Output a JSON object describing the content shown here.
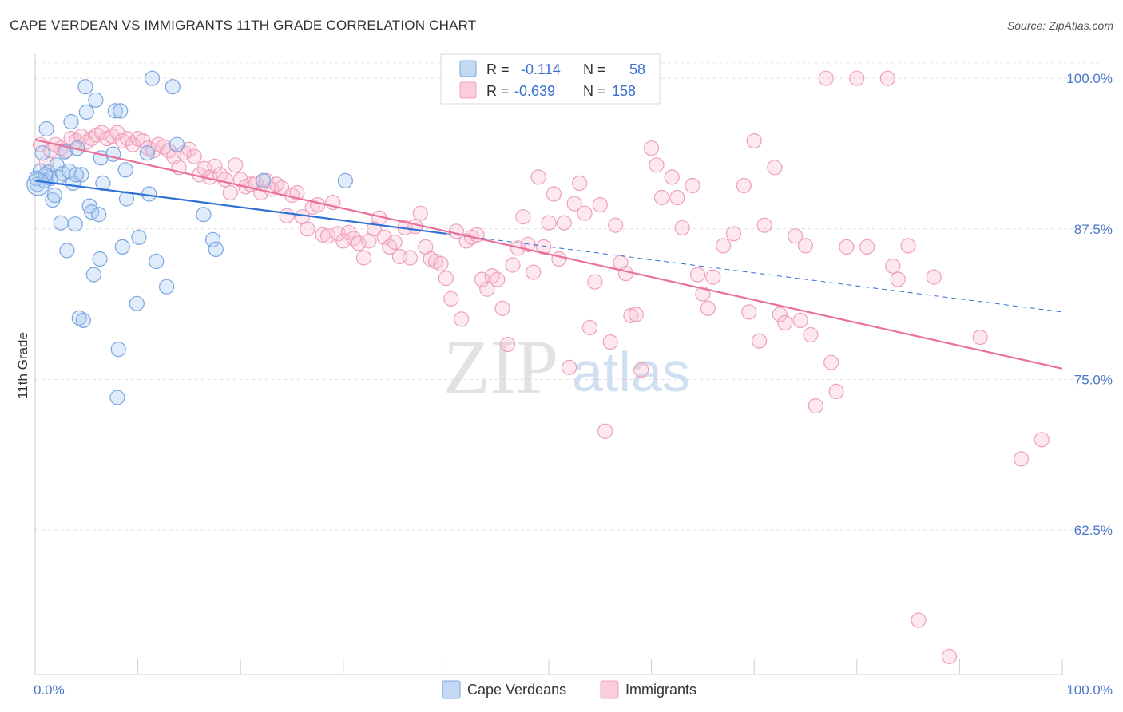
{
  "title": "CAPE VERDEAN VS IMMIGRANTS 11TH GRADE CORRELATION CHART",
  "source": "Source: ZipAtlas.com",
  "watermark": {
    "zip": "ZIP",
    "atlas": "atlas"
  },
  "chart_data": {
    "type": "scatter",
    "ylabel": "11th Grade",
    "xlim": [
      0,
      100
    ],
    "ylim": [
      50.5,
      102
    ],
    "x_tick_labels": {
      "left": "0.0%",
      "right": "100.0%"
    },
    "y_ticks": [
      {
        "value": 100.0,
        "label": "100.0%"
      },
      {
        "value": 87.5,
        "label": "87.5%"
      },
      {
        "value": 75.0,
        "label": "75.0%"
      },
      {
        "value": 62.5,
        "label": "62.5%"
      }
    ],
    "grid": true,
    "legend_position": "top-center",
    "legend": [
      {
        "name": "Cape Verdeans",
        "r_label": "R =",
        "r": "-0.114",
        "n_label": "N =",
        "n": "58",
        "color": "#7aa6e0"
      },
      {
        "name": "Immigrants",
        "r_label": "R =",
        "r": "-0.639",
        "n_label": "N =",
        "n": "158",
        "color": "#f0a0bc"
      }
    ],
    "series": [
      {
        "name": "Cape Verdeans",
        "color": "#7aa6e0",
        "trend": {
          "x0": 0,
          "y0": 91.5,
          "x1": 40,
          "y1": 87.1,
          "dash_to_x": 100,
          "dash_to_y": 80.6
        },
        "points": [
          [
            0.2,
            91.2
          ],
          [
            0.5,
            92.3
          ],
          [
            0.7,
            93.8
          ],
          [
            0.9,
            91.5
          ],
          [
            1.1,
            95.8
          ],
          [
            1.3,
            92.2
          ],
          [
            1.5,
            91.7
          ],
          [
            1.7,
            89.9
          ],
          [
            1.9,
            90.3
          ],
          [
            2.1,
            92.8
          ],
          [
            2.3,
            91.8
          ],
          [
            2.5,
            88.0
          ],
          [
            2.7,
            92.1
          ],
          [
            2.9,
            93.9
          ],
          [
            3.1,
            85.7
          ],
          [
            3.3,
            92.3
          ],
          [
            3.5,
            96.4
          ],
          [
            3.7,
            91.3
          ],
          [
            3.9,
            87.9
          ],
          [
            4.1,
            94.2
          ],
          [
            4.3,
            80.1
          ],
          [
            4.5,
            92.0
          ],
          [
            4.7,
            79.9
          ],
          [
            4.9,
            99.3
          ],
          [
            5.0,
            97.2
          ],
          [
            5.3,
            89.4
          ],
          [
            5.5,
            88.9
          ],
          [
            5.7,
            83.7
          ],
          [
            5.9,
            98.2
          ],
          [
            6.2,
            88.7
          ],
          [
            6.4,
            93.4
          ],
          [
            6.3,
            85.0
          ],
          [
            6.6,
            91.3
          ],
          [
            7.8,
            97.3
          ],
          [
            7.6,
            93.7
          ],
          [
            8.1,
            77.5
          ],
          [
            8.3,
            97.3
          ],
          [
            8.5,
            86.0
          ],
          [
            8.8,
            92.4
          ],
          [
            8.9,
            90.0
          ],
          [
            8.0,
            73.5
          ],
          [
            9.9,
            81.3
          ],
          [
            10.1,
            86.8
          ],
          [
            10.9,
            93.8
          ],
          [
            11.1,
            90.4
          ],
          [
            11.8,
            84.8
          ],
          [
            11.4,
            100.0
          ],
          [
            12.8,
            82.7
          ],
          [
            13.4,
            99.3
          ],
          [
            13.8,
            94.5
          ],
          [
            16.4,
            88.7
          ],
          [
            17.3,
            86.6
          ],
          [
            17.6,
            85.8
          ],
          [
            22.2,
            91.5
          ],
          [
            30.2,
            91.5
          ],
          [
            0.1,
            91.7
          ],
          [
            1.0,
            92.0
          ],
          [
            4.0,
            92.0
          ]
        ]
      },
      {
        "name": "Immigrants",
        "color": "#f0a0bc",
        "trend": {
          "x0": 0,
          "y0": 94.9,
          "x1": 100,
          "y1": 75.9
        },
        "points": [
          [
            0.5,
            94.5
          ],
          [
            1.1,
            93.0
          ],
          [
            1.5,
            94.0
          ],
          [
            2.0,
            94.5
          ],
          [
            2.5,
            94.2
          ],
          [
            3.0,
            94.0
          ],
          [
            3.5,
            95.0
          ],
          [
            4.0,
            94.8
          ],
          [
            4.5,
            95.2
          ],
          [
            5.0,
            94.7
          ],
          [
            5.5,
            95.0
          ],
          [
            6.0,
            95.3
          ],
          [
            6.5,
            95.5
          ],
          [
            7.0,
            95.0
          ],
          [
            7.5,
            95.2
          ],
          [
            8.0,
            95.5
          ],
          [
            8.5,
            94.8
          ],
          [
            9.0,
            95.0
          ],
          [
            9.5,
            94.5
          ],
          [
            10.0,
            95.0
          ],
          [
            10.5,
            94.8
          ],
          [
            11.0,
            94.2
          ],
          [
            11.5,
            94.0
          ],
          [
            12.0,
            94.5
          ],
          [
            12.5,
            94.3
          ],
          [
            13.0,
            94.0
          ],
          [
            13.5,
            93.5
          ],
          [
            14.0,
            92.6
          ],
          [
            14.5,
            93.8
          ],
          [
            15.0,
            94.1
          ],
          [
            15.5,
            93.5
          ],
          [
            16.0,
            92.0
          ],
          [
            16.5,
            92.5
          ],
          [
            17.0,
            91.8
          ],
          [
            17.5,
            92.7
          ],
          [
            18.0,
            92.0
          ],
          [
            18.5,
            91.6
          ],
          [
            19.0,
            90.5
          ],
          [
            19.5,
            92.8
          ],
          [
            20.0,
            91.6
          ],
          [
            20.5,
            91.0
          ],
          [
            21.0,
            91.2
          ],
          [
            21.5,
            91.3
          ],
          [
            22.0,
            90.5
          ],
          [
            22.5,
            91.5
          ],
          [
            23.0,
            90.8
          ],
          [
            23.5,
            91.2
          ],
          [
            24.0,
            90.9
          ],
          [
            24.5,
            88.6
          ],
          [
            25.0,
            90.3
          ],
          [
            25.5,
            90.5
          ],
          [
            26.0,
            88.5
          ],
          [
            26.5,
            87.5
          ],
          [
            27.0,
            89.3
          ],
          [
            27.5,
            89.5
          ],
          [
            28.0,
            87.0
          ],
          [
            28.5,
            86.9
          ],
          [
            29.0,
            89.7
          ],
          [
            29.5,
            87.1
          ],
          [
            30.0,
            86.5
          ],
          [
            30.5,
            87.2
          ],
          [
            31.0,
            86.7
          ],
          [
            31.5,
            86.3
          ],
          [
            32.0,
            85.1
          ],
          [
            32.5,
            86.5
          ],
          [
            33.0,
            87.5
          ],
          [
            33.5,
            88.4
          ],
          [
            34.0,
            86.8
          ],
          [
            34.5,
            86.0
          ],
          [
            35.0,
            86.4
          ],
          [
            35.5,
            85.2
          ],
          [
            36.0,
            87.6
          ],
          [
            36.5,
            85.1
          ],
          [
            37.0,
            87.7
          ],
          [
            37.5,
            88.8
          ],
          [
            38.0,
            86.0
          ],
          [
            38.5,
            85.0
          ],
          [
            39.0,
            84.8
          ],
          [
            39.5,
            84.6
          ],
          [
            40.0,
            83.4
          ],
          [
            40.5,
            81.7
          ],
          [
            41.0,
            87.3
          ],
          [
            41.5,
            80.0
          ],
          [
            42.0,
            86.5
          ],
          [
            42.5,
            86.8
          ],
          [
            43.0,
            87.0
          ],
          [
            43.5,
            83.3
          ],
          [
            44.0,
            82.5
          ],
          [
            44.5,
            83.6
          ],
          [
            45.0,
            83.3
          ],
          [
            45.5,
            80.9
          ],
          [
            46.0,
            77.9
          ],
          [
            46.5,
            84.5
          ],
          [
            47.0,
            85.9
          ],
          [
            47.5,
            88.5
          ],
          [
            48.0,
            86.2
          ],
          [
            48.5,
            83.9
          ],
          [
            49.0,
            91.8
          ],
          [
            49.5,
            86.0
          ],
          [
            50.0,
            88.0
          ],
          [
            50.5,
            90.4
          ],
          [
            51.0,
            85.0
          ],
          [
            51.5,
            88.0
          ],
          [
            52.0,
            76.0
          ],
          [
            52.5,
            89.6
          ],
          [
            53.0,
            91.3
          ],
          [
            53.5,
            88.8
          ],
          [
            54.0,
            79.3
          ],
          [
            54.5,
            83.1
          ],
          [
            55.0,
            89.5
          ],
          [
            55.5,
            70.7
          ],
          [
            56.0,
            78.1
          ],
          [
            56.5,
            87.8
          ],
          [
            57.0,
            84.7
          ],
          [
            57.5,
            83.8
          ],
          [
            58.0,
            80.3
          ],
          [
            58.5,
            80.4
          ],
          [
            59.0,
            75.8
          ],
          [
            60.0,
            94.2
          ],
          [
            60.5,
            92.8
          ],
          [
            61.0,
            90.1
          ],
          [
            62.0,
            91.8
          ],
          [
            62.5,
            90.1
          ],
          [
            63.0,
            87.6
          ],
          [
            64.0,
            91.1
          ],
          [
            64.5,
            83.7
          ],
          [
            65.0,
            82.1
          ],
          [
            65.5,
            80.9
          ],
          [
            66.0,
            83.5
          ],
          [
            67.0,
            86.1
          ],
          [
            68.0,
            87.1
          ],
          [
            69.0,
            91.1
          ],
          [
            69.5,
            80.6
          ],
          [
            70.0,
            94.8
          ],
          [
            70.5,
            78.2
          ],
          [
            71.0,
            87.8
          ],
          [
            72.0,
            92.6
          ],
          [
            72.5,
            80.4
          ],
          [
            73.0,
            79.7
          ],
          [
            74.0,
            86.9
          ],
          [
            74.5,
            79.9
          ],
          [
            75.0,
            86.1
          ],
          [
            75.5,
            78.7
          ],
          [
            76.0,
            72.8
          ],
          [
            77.0,
            100.0
          ],
          [
            77.5,
            76.4
          ],
          [
            78.0,
            74.0
          ],
          [
            79.0,
            86.0
          ],
          [
            80.0,
            100.0
          ],
          [
            83.0,
            100.0
          ],
          [
            85.0,
            86.1
          ],
          [
            86.0,
            55.0
          ],
          [
            89.0,
            52.0
          ],
          [
            96.0,
            68.4
          ],
          [
            98.0,
            70.0
          ],
          [
            92.0,
            78.5
          ],
          [
            81.0,
            86.0
          ],
          [
            83.5,
            84.4
          ],
          [
            84.0,
            83.3
          ],
          [
            87.5,
            83.5
          ]
        ]
      }
    ]
  }
}
